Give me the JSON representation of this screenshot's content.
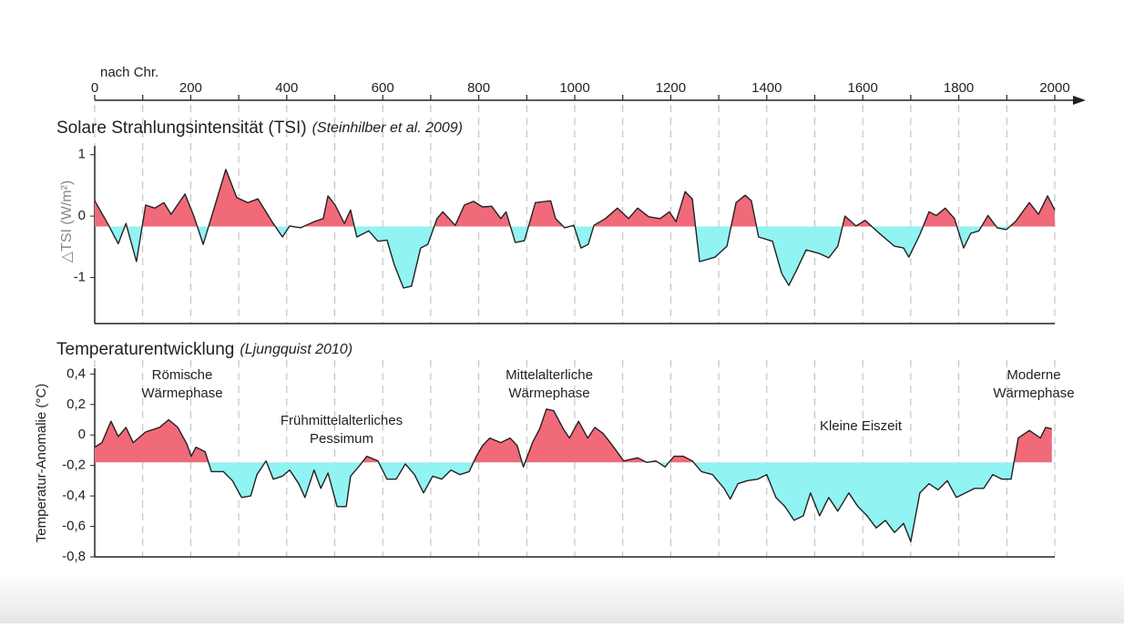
{
  "chart_data": [
    {
      "type": "line",
      "title": "Solare Strahlungsintensität (TSI)",
      "subtitle": "(Steinhilber et al. 2009)",
      "x_label": "nach Chr.",
      "y_label": "△TSI  (W/m²)",
      "xlim": [
        0,
        2000
      ],
      "xticks": [
        0,
        200,
        400,
        600,
        800,
        1000,
        1200,
        1400,
        1600,
        1800,
        2000
      ],
      "minor_xticks": [
        100,
        300,
        500,
        700,
        900,
        1100,
        1300,
        1500,
        1700,
        1900
      ],
      "ylim": [
        -1.75,
        1.1
      ],
      "yticks": [
        1,
        0,
        -1
      ],
      "baseline": -0.17,
      "line_color": "#222222",
      "above_color": "#f06a7a",
      "below_color": "#92f3f3",
      "x": [
        0,
        27,
        49,
        65,
        87,
        106,
        125,
        144,
        159,
        188,
        207,
        226,
        273,
        296,
        319,
        340,
        372,
        391,
        406,
        429,
        457,
        476,
        486,
        501,
        520,
        533,
        546,
        571,
        590,
        609,
        624,
        643,
        660,
        679,
        694,
        713,
        725,
        751,
        770,
        789,
        808,
        827,
        846,
        857,
        876,
        895,
        918,
        950,
        960,
        979,
        998,
        1013,
        1028,
        1040,
        1064,
        1089,
        1112,
        1131,
        1154,
        1178,
        1197,
        1211,
        1230,
        1245,
        1260,
        1292,
        1317,
        1336,
        1355,
        1368,
        1383,
        1412,
        1431,
        1446,
        1461,
        1482,
        1510,
        1529,
        1548,
        1563,
        1586,
        1605,
        1633,
        1666,
        1685,
        1696,
        1719,
        1738,
        1753,
        1772,
        1791,
        1810,
        1825,
        1842,
        1861,
        1880,
        1899,
        1918,
        1947,
        1966,
        1985,
        2000
      ],
      "values": [
        0.25,
        -0.12,
        -0.45,
        -0.12,
        -0.74,
        0.18,
        0.13,
        0.22,
        0.03,
        0.36,
        -0.01,
        -0.46,
        0.76,
        0.3,
        0.22,
        0.28,
        -0.12,
        -0.34,
        -0.16,
        -0.19,
        -0.09,
        -0.04,
        0.33,
        0.18,
        -0.12,
        0.1,
        -0.34,
        -0.24,
        -0.41,
        -0.39,
        -0.79,
        -1.17,
        -1.14,
        -0.52,
        -0.46,
        -0.04,
        0.07,
        -0.15,
        0.18,
        0.24,
        0.15,
        0.16,
        -0.04,
        0.07,
        -0.43,
        -0.4,
        0.22,
        0.25,
        -0.04,
        -0.19,
        -0.15,
        -0.52,
        -0.46,
        -0.15,
        -0.04,
        0.13,
        -0.04,
        0.13,
        -0.01,
        -0.04,
        0.07,
        -0.09,
        0.4,
        0.28,
        -0.74,
        -0.67,
        -0.49,
        0.22,
        0.34,
        0.25,
        -0.34,
        -0.41,
        -0.93,
        -1.13,
        -0.9,
        -0.55,
        -0.61,
        -0.68,
        -0.49,
        0,
        -0.16,
        -0.07,
        -0.27,
        -0.49,
        -0.52,
        -0.67,
        -0.3,
        0.07,
        0.01,
        0.13,
        -0.04,
        -0.52,
        -0.28,
        -0.24,
        0.01,
        -0.19,
        -0.22,
        -0.09,
        0.22,
        0.03,
        0.33,
        0.1
      ]
    },
    {
      "type": "line",
      "title": "Temperaturentwicklung",
      "subtitle": "(Ljungquist 2010)",
      "y_label": "Temperatur-Anomalie (°C)",
      "xlim": [
        0,
        2000
      ],
      "ylim": [
        -0.8,
        0.42
      ],
      "yticks": [
        {
          "value": 0.4,
          "label": "0,4"
        },
        {
          "value": 0.2,
          "label": "0,2"
        },
        0,
        {
          "value": -0.2,
          "label": "-0,2"
        },
        {
          "value": -0.4,
          "label": "-0,4"
        },
        {
          "value": -0.6,
          "label": "-0,6"
        },
        {
          "value": -0.8,
          "label": "-0,8"
        }
      ],
      "baseline": -0.18,
      "line_color": "#222222",
      "above_color": "#f06a7a",
      "below_color": "#92f3f3",
      "annotations": [
        {
          "lines": [
            "Römische",
            "Wärmephase"
          ]
        },
        {
          "lines": [
            "Frühmittelalterliches",
            "Pessimum"
          ]
        },
        {
          "lines": [
            "Mittelalterliche",
            "Wärmephase"
          ]
        },
        {
          "lines": [
            "Kleine Eiszeit"
          ]
        },
        {
          "lines": [
            "Moderne",
            "Wärmephase"
          ]
        }
      ],
      "x": [
        0,
        15,
        34,
        49,
        65,
        80,
        106,
        135,
        154,
        173,
        192,
        201,
        211,
        230,
        243,
        268,
        287,
        306,
        325,
        338,
        357,
        372,
        391,
        406,
        425,
        438,
        457,
        471,
        486,
        505,
        524,
        533,
        552,
        567,
        590,
        609,
        628,
        647,
        666,
        685,
        704,
        723,
        742,
        761,
        780,
        795,
        808,
        823,
        846,
        865,
        880,
        893,
        912,
        927,
        941,
        956,
        976,
        989,
        1008,
        1027,
        1042,
        1059,
        1074,
        1102,
        1131,
        1150,
        1169,
        1188,
        1207,
        1226,
        1245,
        1264,
        1287,
        1311,
        1324,
        1340,
        1359,
        1381,
        1400,
        1419,
        1438,
        1457,
        1476,
        1491,
        1510,
        1529,
        1548,
        1571,
        1590,
        1609,
        1628,
        1647,
        1666,
        1685,
        1700,
        1719,
        1738,
        1757,
        1776,
        1795,
        1814,
        1833,
        1852,
        1871,
        1890,
        1909,
        1924,
        1947,
        1970,
        1981,
        1994
      ],
      "values": [
        -0.08,
        -0.05,
        0.09,
        -0.01,
        0.05,
        -0.05,
        0.02,
        0.05,
        0.1,
        0.05,
        -0.06,
        -0.14,
        -0.08,
        -0.11,
        -0.24,
        -0.24,
        -0.3,
        -0.41,
        -0.4,
        -0.26,
        -0.17,
        -0.29,
        -0.27,
        -0.23,
        -0.32,
        -0.41,
        -0.23,
        -0.35,
        -0.25,
        -0.47,
        -0.47,
        -0.27,
        -0.2,
        -0.14,
        -0.17,
        -0.29,
        -0.29,
        -0.19,
        -0.26,
        -0.38,
        -0.27,
        -0.29,
        -0.23,
        -0.26,
        -0.24,
        -0.14,
        -0.07,
        -0.02,
        -0.05,
        -0.02,
        -0.07,
        -0.21,
        -0.05,
        0.04,
        0.17,
        0.16,
        0.04,
        -0.02,
        0.09,
        -0.02,
        0.05,
        0.01,
        -0.05,
        -0.17,
        -0.15,
        -0.18,
        -0.17,
        -0.21,
        -0.14,
        -0.14,
        -0.17,
        -0.24,
        -0.26,
        -0.35,
        -0.42,
        -0.32,
        -0.3,
        -0.29,
        -0.26,
        -0.41,
        -0.47,
        -0.56,
        -0.53,
        -0.38,
        -0.53,
        -0.41,
        -0.5,
        -0.38,
        -0.47,
        -0.53,
        -0.61,
        -0.56,
        -0.64,
        -0.58,
        -0.7,
        -0.38,
        -0.32,
        -0.36,
        -0.3,
        -0.41,
        -0.38,
        -0.35,
        -0.35,
        -0.26,
        -0.29,
        -0.29,
        -0.02,
        0.03,
        -0.02,
        0.05,
        0.04
      ]
    }
  ]
}
